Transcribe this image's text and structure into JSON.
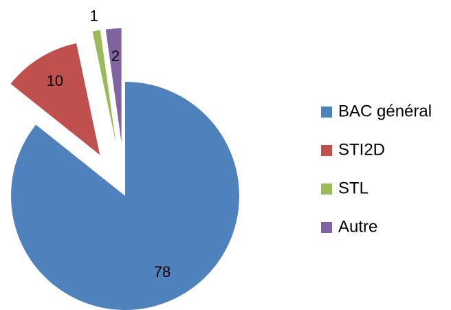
{
  "chart_data": {
    "type": "pie",
    "categories": [
      "BAC général",
      "STI2D",
      "STL",
      "Autre"
    ],
    "values": [
      78,
      10,
      1,
      2
    ],
    "colors": [
      "#4f81bd",
      "#c0504d",
      "#9bbb59",
      "#8064a2"
    ],
    "legend": "right"
  }
}
